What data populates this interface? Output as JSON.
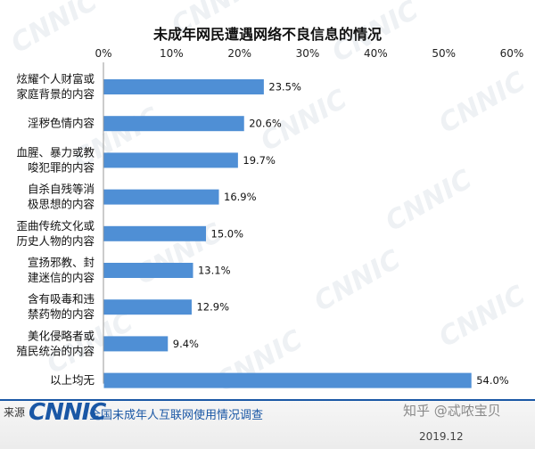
{
  "chart_data": {
    "type": "bar",
    "orientation": "horizontal",
    "title": "未成年网民遭遇网络不良信息的情况",
    "categories": [
      [
        "炫耀个人财富或",
        "家庭背景的内容"
      ],
      [
        "淫秽色情内容"
      ],
      [
        "血腥、暴力或教",
        "唆犯罪的内容"
      ],
      [
        "自杀自残等消",
        "极思想的内容"
      ],
      [
        "歪曲传统文化或",
        "历史人物的内容"
      ],
      [
        "宣扬邪教、封",
        "建迷信的内容"
      ],
      [
        "含有吸毒和违",
        "禁药物的内容"
      ],
      [
        "美化侵略者或",
        "殖民统治的内容"
      ],
      [
        "以上均无"
      ]
    ],
    "values": [
      23.5,
      20.6,
      19.7,
      16.9,
      15.0,
      13.1,
      12.9,
      9.4,
      54.0
    ],
    "value_labels": [
      "23.5%",
      "20.6%",
      "19.7%",
      "16.9%",
      "15.0%",
      "13.1%",
      "12.9%",
      "9.4%",
      "54.0%"
    ],
    "xlim": [
      0,
      60
    ],
    "xticks": [
      0,
      10,
      20,
      30,
      40,
      50,
      60
    ],
    "xtick_labels": [
      "0%",
      "10%",
      "20%",
      "30%",
      "40%",
      "50%",
      "60%"
    ],
    "axis_position": "top",
    "grid": false,
    "legend": "none",
    "bar_color": "#4f8fd5"
  },
  "watermark": "CNNIC",
  "footer": {
    "source_label": "来源",
    "logo": "CNNIC",
    "source_text": "全国未成年人互联网使用情况调查",
    "zhihu": "知乎 @忒哝宝贝",
    "date": "2019.12"
  }
}
